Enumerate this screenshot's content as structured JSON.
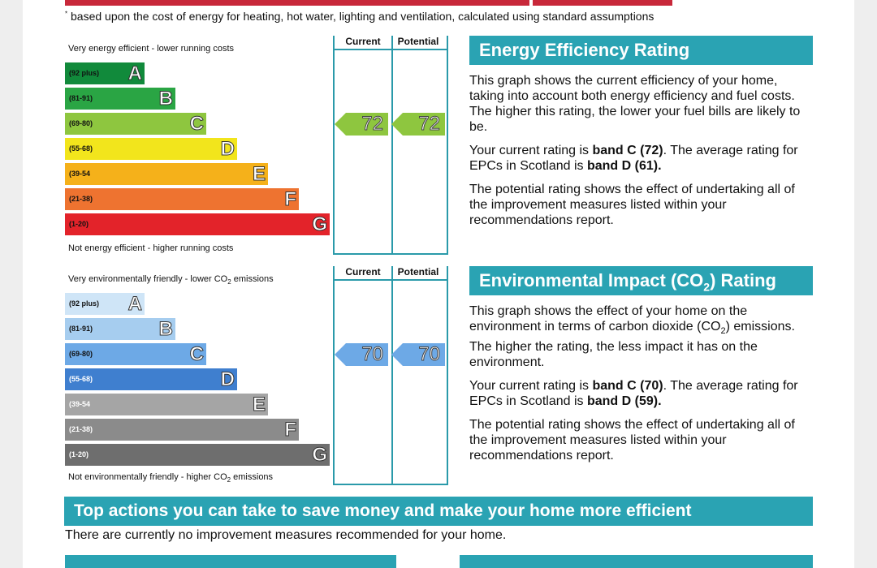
{
  "footnote": "based upon the cost of energy for heating, hot water, lighting and ventilation, calculated using standard assumptions",
  "footnote_mark": "*",
  "colors": {
    "accent": "#2aa3b3",
    "topbar": "#c8283a"
  },
  "energy_chart": {
    "top_label": "Very energy efficient - lower running costs",
    "bottom_label": "Not energy efficient - higher running costs",
    "current_header": "Current",
    "potential_header": "Potential",
    "bands": [
      {
        "range": "(92 plus)",
        "letter": "A",
        "color": "#118a3b"
      },
      {
        "range": "(81-91)",
        "letter": "B",
        "color": "#2aa544"
      },
      {
        "range": "(69-80)",
        "letter": "C",
        "color": "#8ec63f"
      },
      {
        "range": "(55-68)",
        "letter": "D",
        "color": "#f2e51c"
      },
      {
        "range": "(39-54",
        "letter": "E",
        "color": "#f5b11a"
      },
      {
        "range": "(21-38)",
        "letter": "F",
        "color": "#ee7330"
      },
      {
        "range": "(1-20)",
        "letter": "G",
        "color": "#e3232a"
      }
    ],
    "current_value": "72",
    "potential_value": "72",
    "current_band": 2,
    "potential_band": 2,
    "arrow_color": "#8ec63f"
  },
  "co2_chart": {
    "top_label": "Very environmentally friendly - lower CO",
    "top_label_sub": "2",
    "top_label_end": " emissions",
    "bottom_label": "Not environmentally friendly - higher CO",
    "bottom_label_sub": "2",
    "bottom_label_end": " emissions",
    "current_header": "Current",
    "potential_header": "Potential",
    "bands": [
      {
        "range": "(92 plus)",
        "letter": "A",
        "color": "#cfe5f7"
      },
      {
        "range": "(81-91)",
        "letter": "B",
        "color": "#a6cdef"
      },
      {
        "range": "(69-80)",
        "letter": "C",
        "color": "#6da9e6"
      },
      {
        "range": "(55-68)",
        "letter": "D",
        "color": "#3f7fcf"
      },
      {
        "range": "(39-54",
        "letter": "E",
        "color": "#a5a5a5"
      },
      {
        "range": "(21-38)",
        "letter": "F",
        "color": "#8b8b8b"
      },
      {
        "range": "(1-20)",
        "letter": "G",
        "color": "#6e6e6e"
      }
    ],
    "current_value": "70",
    "potential_value": "70",
    "current_band": 2,
    "potential_band": 2,
    "arrow_color": "#6da9e6"
  },
  "energy_panel": {
    "title": "Energy Efficiency Rating",
    "p1": "This graph shows the current efficiency of your home, taking into account both energy efficiency and fuel costs. The higher this rating, the lower your fuel bills are likely to be.",
    "p2_a": "Your current rating is ",
    "p2_b": "band C (72)",
    "p2_c": ". The average rating for EPCs in Scotland is ",
    "p2_d": "band D (61).",
    "p3": "The potential rating shows the effect of undertaking all of the improvement measures listed within your recommendations report."
  },
  "co2_panel": {
    "title_a": "Environmental Impact (CO",
    "title_sub": "2",
    "title_b": ") Rating",
    "p1_a": "This graph shows the effect of your home on the environment in terms of carbon dioxide (CO",
    "p1_sub": "2",
    "p1_b": ") emissions. The higher the rating, the less impact it has on the environment.",
    "p2_a": "Your current rating is ",
    "p2_b": "band C (70)",
    "p2_c": ". The average rating for EPCs in Scotland is ",
    "p2_d": "band D (59).",
    "p3": "The potential rating shows the effect of undertaking all of the improvement measures listed within your recommendations report."
  },
  "actions": {
    "title": "Top actions you can take to save money and make your home more efficient",
    "text": "There are currently no improvement measures recommended for your home."
  }
}
